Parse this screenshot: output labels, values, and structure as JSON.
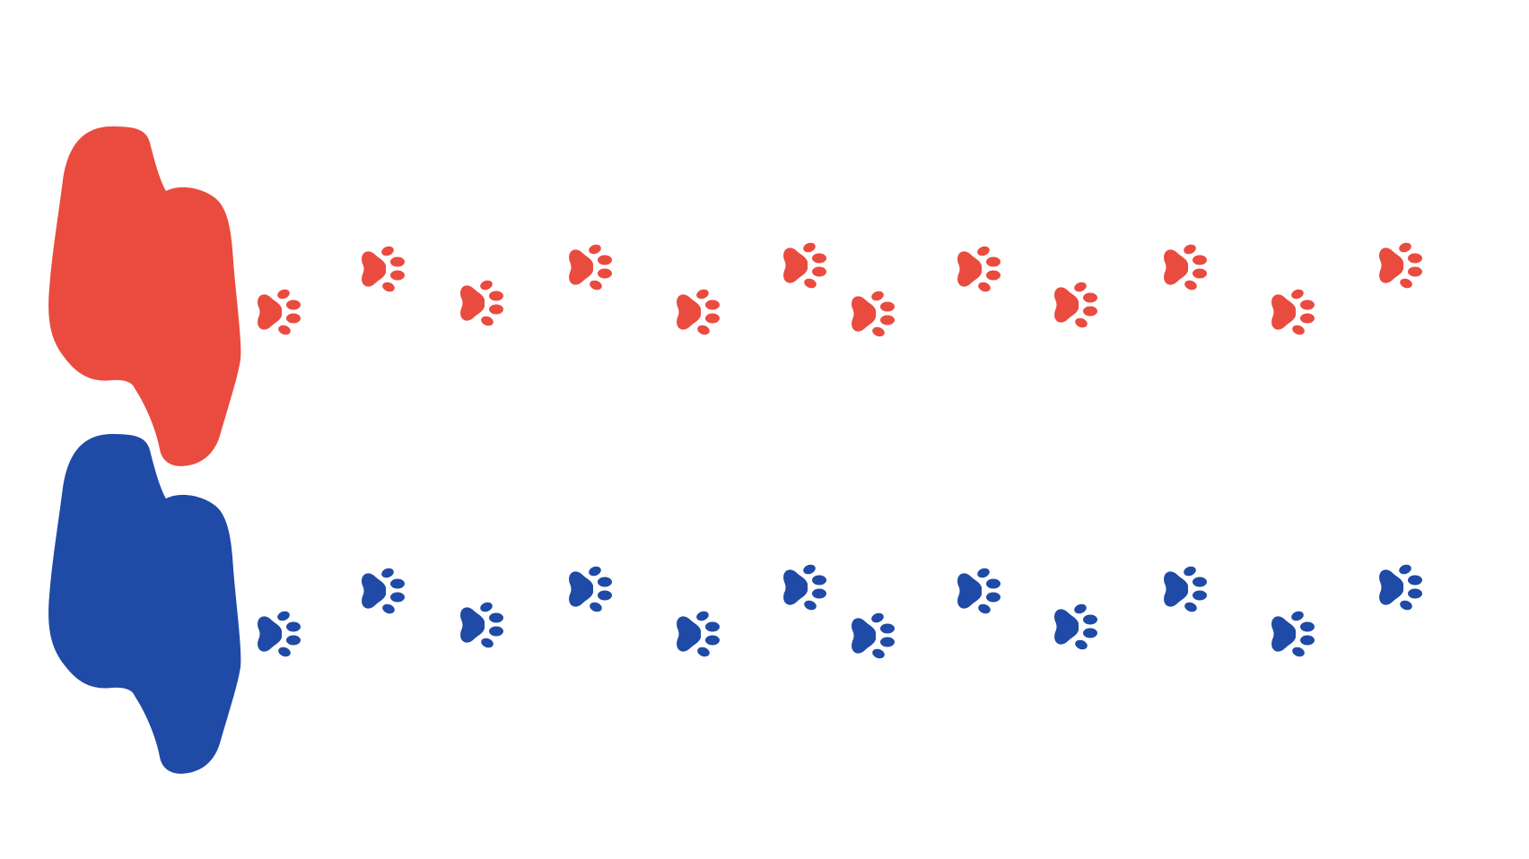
{
  "colors": {
    "background": "#ffffff",
    "red_track": "#ea4b3f",
    "blue_track": "#1f4aa6"
  },
  "tracks": [
    {
      "name": "red-track",
      "color": "#ea4b3f",
      "paw_count": 13,
      "icon": "paw-print-icon"
    },
    {
      "name": "blue-track",
      "color": "#1f4aa6",
      "paw_count": 13,
      "icon": "paw-print-icon"
    }
  ]
}
